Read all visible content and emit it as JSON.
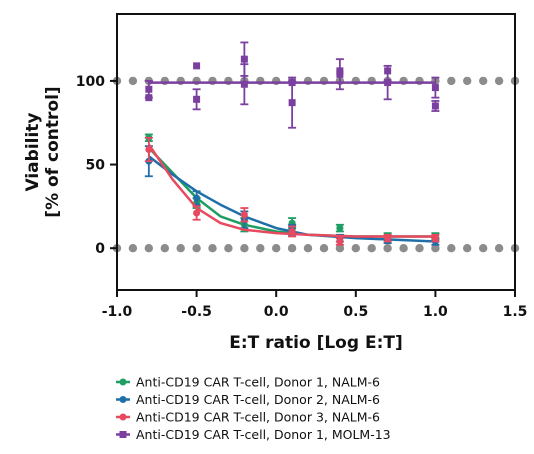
{
  "chart_data": {
    "type": "scatter",
    "xlabel": "E:T ratio [Log E:T]",
    "ylabel_lines": [
      "Viability",
      "[% of control]"
    ],
    "xlim": [
      -1.0,
      1.5
    ],
    "ylim": [
      -25,
      140
    ],
    "x_ticks": [
      -1.0,
      -0.5,
      0.0,
      0.5,
      1.0,
      1.5
    ],
    "x_tick_labels": [
      "-1.0",
      "-0.5",
      "0.0",
      "0.5",
      "1.0",
      "1.5"
    ],
    "y_ticks": [
      0,
      50,
      100
    ],
    "y_tick_labels": [
      "0",
      "50",
      "100"
    ],
    "grid": false,
    "legend_position": "bottom",
    "reference_lines": [
      {
        "y": 100,
        "color": "#8c8c8c",
        "style": "dotted"
      },
      {
        "y": 0,
        "color": "#8c8c8c",
        "style": "dotted"
      }
    ],
    "series": [
      {
        "name": "Anti-CD19 CAR T-cell, Donor 1, NALM-6",
        "color": "#1f9e63",
        "marker": "circle",
        "x": [
          -0.8,
          -0.5,
          -0.2,
          0.1,
          0.4,
          0.7,
          1.0
        ],
        "y": [
          66,
          27,
          14,
          15,
          12,
          7,
          7
        ],
        "err": [
          2,
          3,
          4,
          3,
          2,
          2,
          2
        ],
        "fit": [
          [
            -0.8,
            60
          ],
          [
            -0.65,
            45
          ],
          [
            -0.5,
            30
          ],
          [
            -0.35,
            19
          ],
          [
            -0.2,
            14
          ],
          [
            0.0,
            10
          ],
          [
            0.2,
            8
          ],
          [
            0.5,
            7
          ],
          [
            1.0,
            7
          ]
        ]
      },
      {
        "name": "Anti-CD19 CAR T-cell, Donor 2, NALM-6",
        "color": "#1f6fa8",
        "marker": "circle",
        "x": [
          -0.8,
          -0.5,
          -0.2,
          0.1,
          0.4,
          0.7,
          1.0
        ],
        "y": [
          52,
          30,
          17,
          11,
          6,
          5,
          4
        ],
        "err": [
          9,
          4,
          5,
          3,
          2,
          2,
          2
        ],
        "fit": [
          [
            -0.8,
            55
          ],
          [
            -0.65,
            44
          ],
          [
            -0.5,
            34
          ],
          [
            -0.35,
            26
          ],
          [
            -0.2,
            19
          ],
          [
            0.0,
            12
          ],
          [
            0.2,
            8
          ],
          [
            0.5,
            6
          ],
          [
            1.0,
            4
          ]
        ]
      },
      {
        "name": "Anti-CD19 CAR T-cell, Donor 3, NALM-6",
        "color": "#e8495f",
        "marker": "circle",
        "x": [
          -0.8,
          -0.5,
          -0.2,
          0.1,
          0.4,
          0.7,
          1.0
        ],
        "y": [
          59,
          21,
          20,
          10,
          4,
          6,
          6
        ],
        "err": [
          7,
          4,
          4,
          3,
          2,
          2,
          2
        ],
        "fit": [
          [
            -0.8,
            62
          ],
          [
            -0.65,
            41
          ],
          [
            -0.5,
            24
          ],
          [
            -0.35,
            15
          ],
          [
            -0.2,
            11
          ],
          [
            0.0,
            9
          ],
          [
            0.2,
            8
          ],
          [
            0.5,
            7
          ],
          [
            1.0,
            7
          ]
        ]
      },
      {
        "name": "Anti-CD19 CAR T-cell, Donor 1, MOLM-13",
        "color": "#7b3fa0",
        "marker": "square",
        "x": [
          -0.8,
          -0.8,
          -0.5,
          -0.5,
          -0.2,
          -0.2,
          0.1,
          0.1,
          0.4,
          0.4,
          0.7,
          0.7,
          1.0,
          1.0
        ],
        "y": [
          95,
          90,
          109,
          89,
          113,
          98,
          99,
          87,
          104,
          106,
          99,
          106,
          96,
          85
        ],
        "err": [
          5,
          0,
          0,
          6,
          10,
          12,
          0,
          15,
          9,
          0,
          10,
          0,
          6,
          3
        ],
        "fit": [
          [
            -0.8,
            99
          ],
          [
            1.0,
            99
          ]
        ]
      }
    ]
  }
}
